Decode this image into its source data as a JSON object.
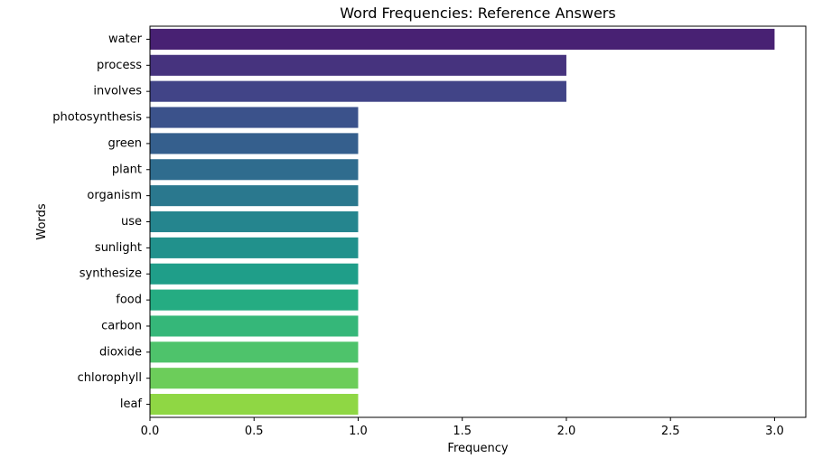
{
  "chart_data": {
    "type": "bar",
    "orientation": "horizontal",
    "title": "Word Frequencies: Reference Answers",
    "xlabel": "Frequency",
    "ylabel": "Words",
    "xlim": [
      0,
      3.15
    ],
    "xticks": [
      "0.0",
      "0.5",
      "1.0",
      "1.5",
      "2.0",
      "2.5",
      "3.0"
    ],
    "categories": [
      "water",
      "process",
      "involves",
      "photosynthesis",
      "green",
      "plant",
      "organism",
      "use",
      "sunlight",
      "synthesize",
      "food",
      "carbon",
      "dioxide",
      "chlorophyll",
      "leaf"
    ],
    "values": [
      3,
      2,
      2,
      1,
      1,
      1,
      1,
      1,
      1,
      1,
      1,
      1,
      1,
      1,
      1
    ],
    "colors": [
      "#482173",
      "#46337e",
      "#414487",
      "#3b528b",
      "#355f8d",
      "#2f6c8e",
      "#2a788e",
      "#25858e",
      "#21918c",
      "#1f9e89",
      "#25ac82",
      "#35b779",
      "#4ec36b",
      "#6ccd5a",
      "#8fd744"
    ],
    "grid": false
  }
}
